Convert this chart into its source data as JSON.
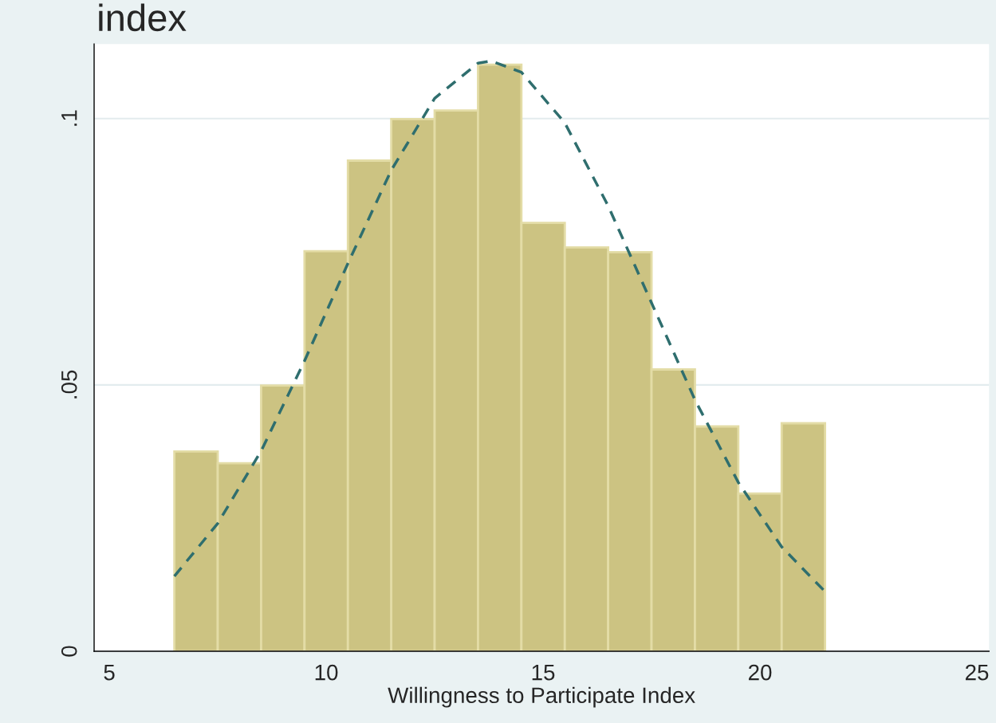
{
  "chart_data": {
    "type": "histogram",
    "title": "index",
    "xlabel": "Willingness to Participate Index",
    "bins": [
      6.5,
      7.5,
      8.5,
      9.5,
      10.5,
      11.5,
      12.5,
      13.5,
      14.5,
      15.5,
      16.5,
      17.5,
      18.5,
      19.5,
      20.5,
      21.5
    ],
    "values": [
      0.0375,
      0.0353,
      0.0499,
      0.0751,
      0.0921,
      0.0999,
      0.1015,
      0.1101,
      0.0804,
      0.0758,
      0.0749,
      0.0529,
      0.0422,
      0.0296,
      0.0428
    ],
    "color": "#ccc382",
    "series": [
      {
        "type": "line",
        "color": "#2f6e6e",
        "line_style": "dashed",
        "x": [
          6.5,
          7.5,
          8.5,
          9.5,
          10.5,
          11.5,
          12.5,
          13.5,
          13.8,
          14.5,
          15.5,
          16.5,
          17.5,
          18.5,
          19.5,
          20.5,
          21.5
        ],
        "values": [
          0.0141,
          0.024,
          0.0376,
          0.0545,
          0.0728,
          0.0903,
          0.1038,
          0.1104,
          0.1108,
          0.1087,
          0.0992,
          0.0836,
          0.0654,
          0.0472,
          0.0317,
          0.0196,
          0.0112
        ]
      }
    ],
    "xlim": [
      4.65,
      25.28
    ],
    "xticks": [
      5,
      10,
      15,
      20,
      25
    ],
    "ylim": [
      0,
      0.114
    ],
    "yticks": [
      {
        "value": 0,
        "label": "0"
      },
      {
        "value": 0.05,
        "label": ".05"
      },
      {
        "value": 0.1,
        "label": ".1"
      }
    ],
    "grid": "y"
  }
}
